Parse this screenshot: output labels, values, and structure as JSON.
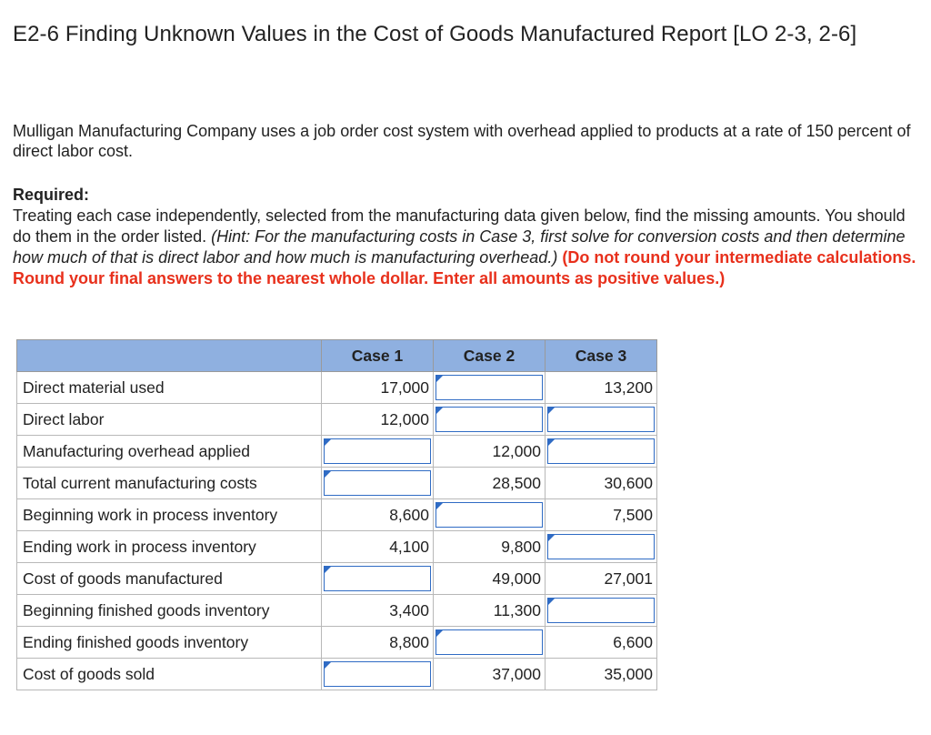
{
  "title": "E2-6 Finding Unknown Values in the Cost of Goods Manufactured Report [LO 2-3, 2-6]",
  "intro": "Mulligan Manufacturing Company uses a job order cost system with overhead applied to products at a rate of 150 percent of direct labor cost.",
  "required": {
    "label": "Required:",
    "text": "Treating each case independently, selected from the manufacturing data given below, find the missing amounts. You should do them in the order listed. ",
    "hint": "(Hint: For the manufacturing costs in Case 3, first solve for conversion costs and then determine how much of that is direct labor and how much is manufacturing overhead.)",
    "warning": "(Do not round your intermediate calculations. Round your final answers to the nearest whole dollar. Enter all amounts as positive values.)"
  },
  "table": {
    "header": {
      "blank": "",
      "case1": "Case 1",
      "case2": "Case 2",
      "case3": "Case 3"
    },
    "rows": [
      {
        "label": "Direct material used",
        "case1": "17,000",
        "case2": "",
        "case3": "13,200"
      },
      {
        "label": "Direct labor",
        "case1": "12,000",
        "case2": "",
        "case3": ""
      },
      {
        "label": "Manufacturing overhead applied",
        "case1": "",
        "case2": "12,000",
        "case3": ""
      },
      {
        "label": "Total current manufacturing costs",
        "case1": "",
        "case2": "28,500",
        "case3": "30,600"
      },
      {
        "label": "Beginning work in process inventory",
        "case1": "8,600",
        "case2": "",
        "case3": "7,500"
      },
      {
        "label": "Ending work in process inventory",
        "case1": "4,100",
        "case2": "9,800",
        "case3": ""
      },
      {
        "label": "Cost of goods manufactured",
        "case1": "",
        "case2": "49,000",
        "case3": "27,001"
      },
      {
        "label": "Beginning finished goods inventory",
        "case1": "3,400",
        "case2": "11,300",
        "case3": ""
      },
      {
        "label": "Ending finished goods inventory",
        "case1": "8,800",
        "case2": "",
        "case3": "6,600"
      },
      {
        "label": "Cost of goods sold",
        "case1": "",
        "case2": "37,000",
        "case3": "35,000"
      }
    ]
  }
}
